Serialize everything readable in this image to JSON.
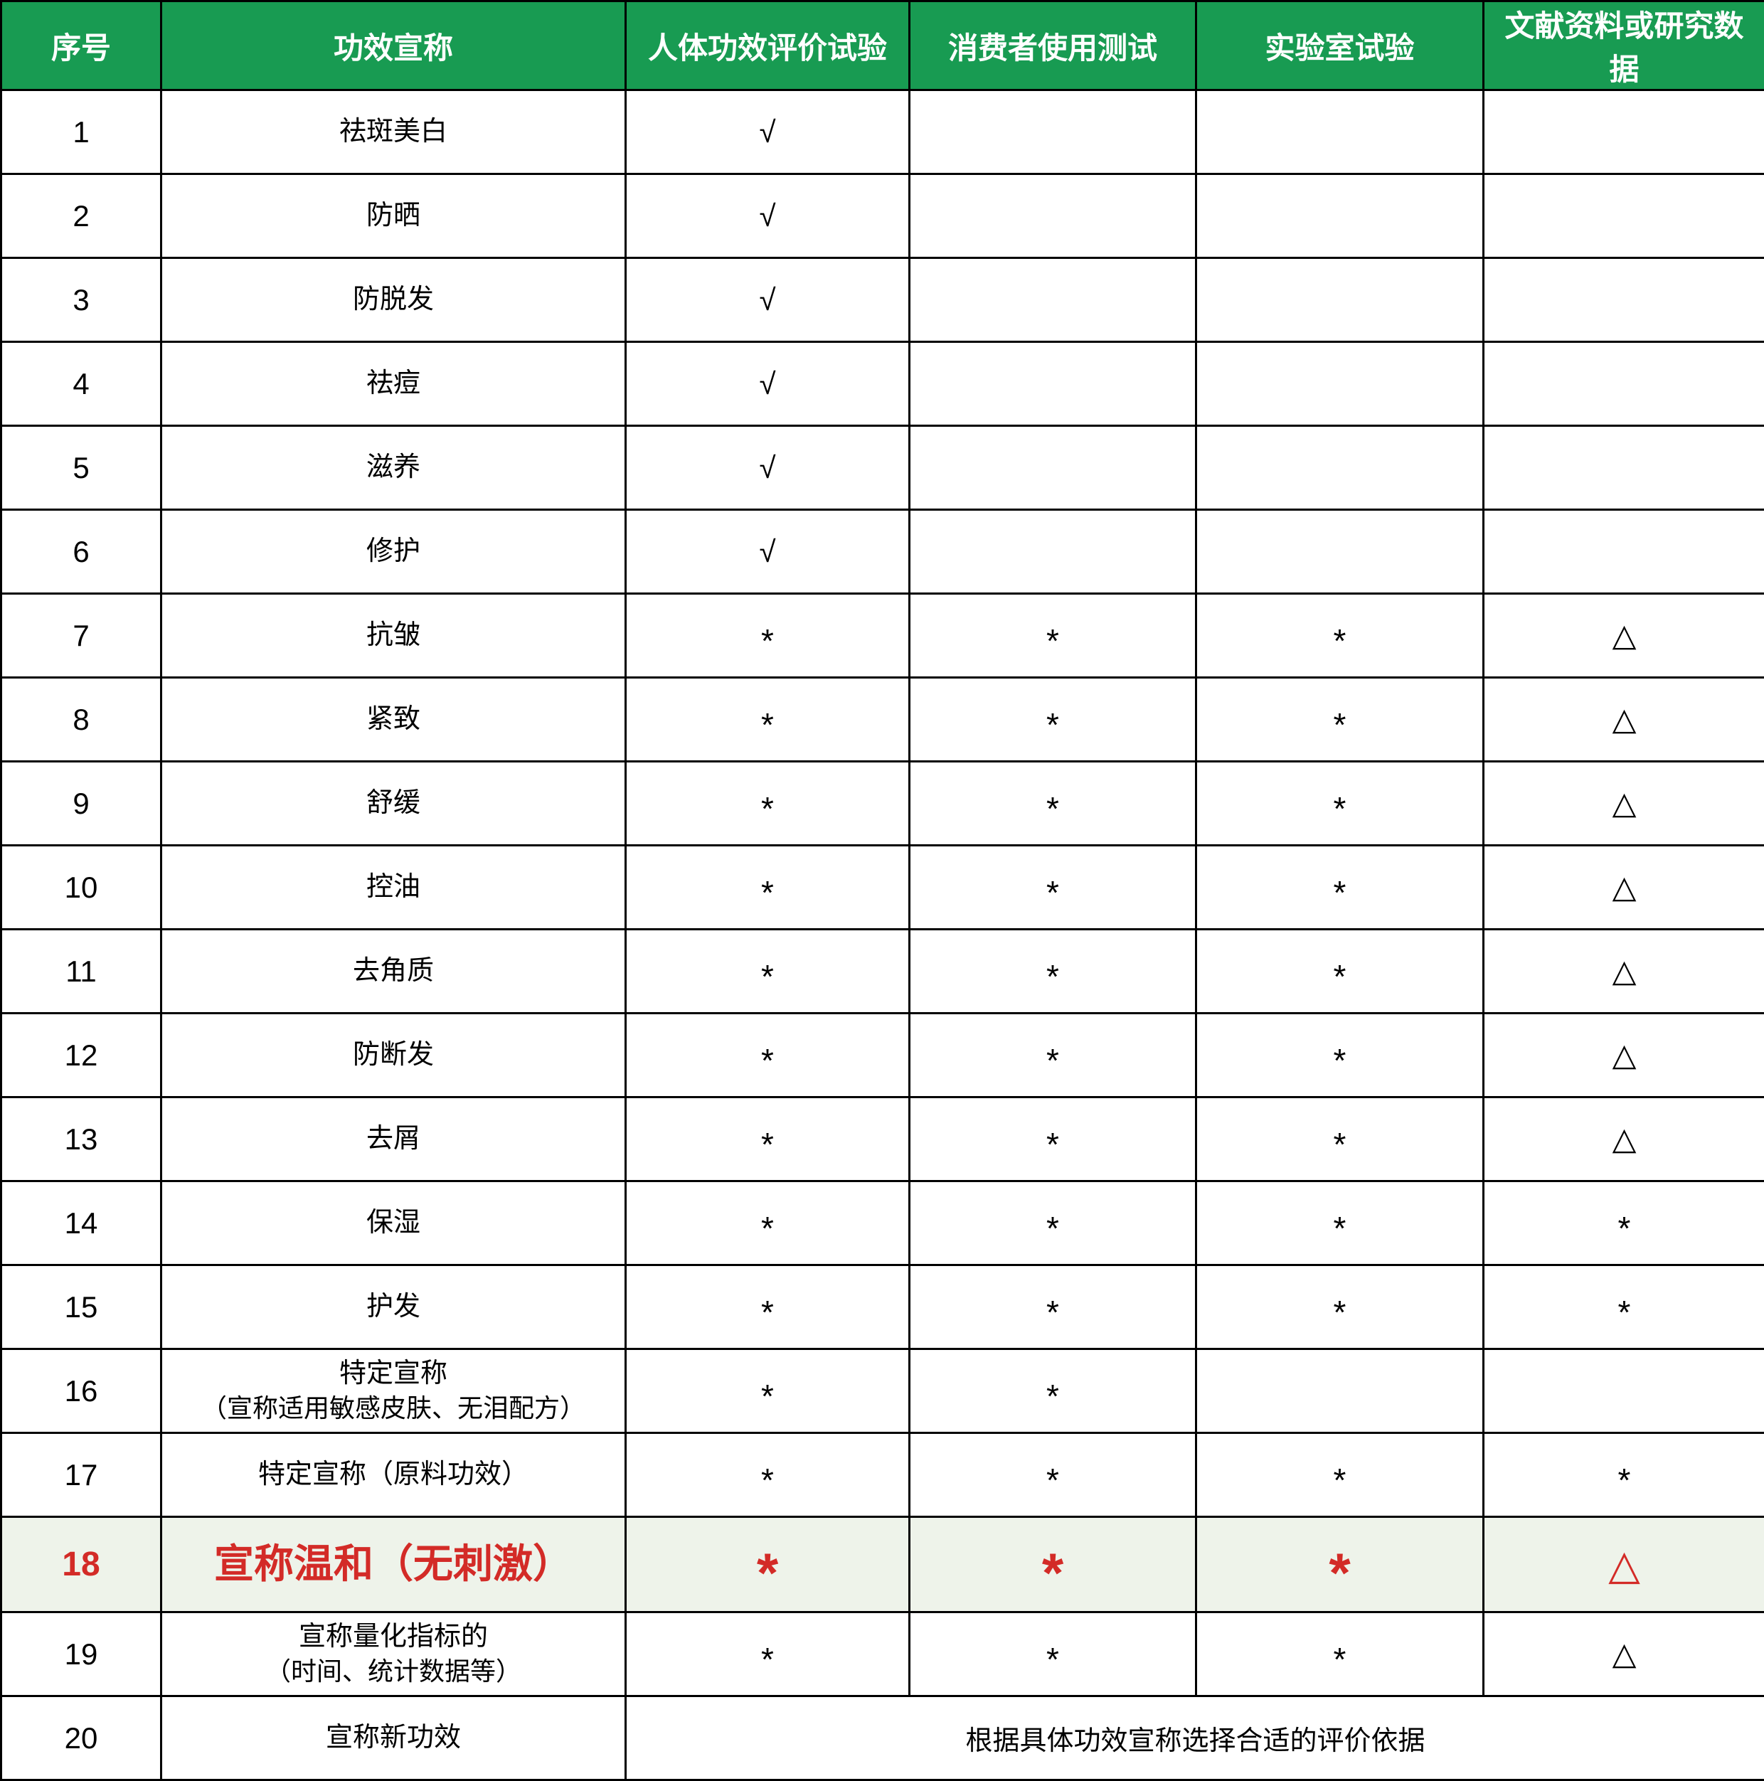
{
  "table": {
    "columns": [
      {
        "label": "序号"
      },
      {
        "label": "功效宣称"
      },
      {
        "label": "人体功效评价试验"
      },
      {
        "label": "消费者使用测试"
      },
      {
        "label": "实验室试验"
      },
      {
        "label": "文献资料或研究数据"
      }
    ],
    "rows": [
      {
        "no": "1",
        "claim": "祛斑美白",
        "cells": [
          "√",
          "",
          "",
          ""
        ]
      },
      {
        "no": "2",
        "claim": "防晒",
        "cells": [
          "√",
          "",
          "",
          ""
        ]
      },
      {
        "no": "3",
        "claim": "防脱发",
        "cells": [
          "√",
          "",
          "",
          ""
        ]
      },
      {
        "no": "4",
        "claim": "祛痘",
        "cells": [
          "√",
          "",
          "",
          ""
        ]
      },
      {
        "no": "5",
        "claim": "滋养",
        "cells": [
          "√",
          "",
          "",
          ""
        ]
      },
      {
        "no": "6",
        "claim": "修护",
        "cells": [
          "√",
          "",
          "",
          ""
        ]
      },
      {
        "no": "7",
        "claim": "抗皱",
        "cells": [
          "*",
          "*",
          "*",
          "△"
        ]
      },
      {
        "no": "8",
        "claim": "紧致",
        "cells": [
          "*",
          "*",
          "*",
          "△"
        ]
      },
      {
        "no": "9",
        "claim": "舒缓",
        "cells": [
          "*",
          "*",
          "*",
          "△"
        ]
      },
      {
        "no": "10",
        "claim": "控油",
        "cells": [
          "*",
          "*",
          "*",
          "△"
        ]
      },
      {
        "no": "11",
        "claim": "去角质",
        "cells": [
          "*",
          "*",
          "*",
          "△"
        ]
      },
      {
        "no": "12",
        "claim": "防断发",
        "cells": [
          "*",
          "*",
          "*",
          "△"
        ]
      },
      {
        "no": "13",
        "claim": "去屑",
        "cells": [
          "*",
          "*",
          "*",
          "△"
        ]
      },
      {
        "no": "14",
        "claim": "保湿",
        "cells": [
          "*",
          "*",
          "*",
          "*"
        ]
      },
      {
        "no": "15",
        "claim": "护发",
        "cells": [
          "*",
          "*",
          "*",
          "*"
        ]
      },
      {
        "no": "16",
        "claim": "特定宣称",
        "claim2": "（宣称适用敏感皮肤、无泪配方）",
        "cells": [
          "*",
          "*",
          "",
          ""
        ]
      },
      {
        "no": "17",
        "claim": "特定宣称（原料功效）",
        "cells": [
          "*",
          "*",
          "*",
          "*"
        ]
      },
      {
        "no": "18",
        "claim": "宣称温和（无刺激）",
        "cells": [
          "*",
          "*",
          "*",
          "△"
        ],
        "highlight": true
      },
      {
        "no": "19",
        "claim": "宣称量化指标的",
        "claim2": "（时间、统计数据等）",
        "cells": [
          "*",
          "*",
          "*",
          "△"
        ]
      },
      {
        "no": "20",
        "claim": "宣称新功效",
        "merged_note": "根据具体功效宣称选择合适的评价依据"
      }
    ]
  },
  "colors": {
    "header_bg": "#189b52",
    "header_text": "#ffffff",
    "highlight_bg": "#eef3ea",
    "highlight_text": "#d32b27",
    "border": "#000000",
    "body_text": "#000000"
  },
  "symbols": {
    "required": "√",
    "optional": "*",
    "literature": "△"
  }
}
